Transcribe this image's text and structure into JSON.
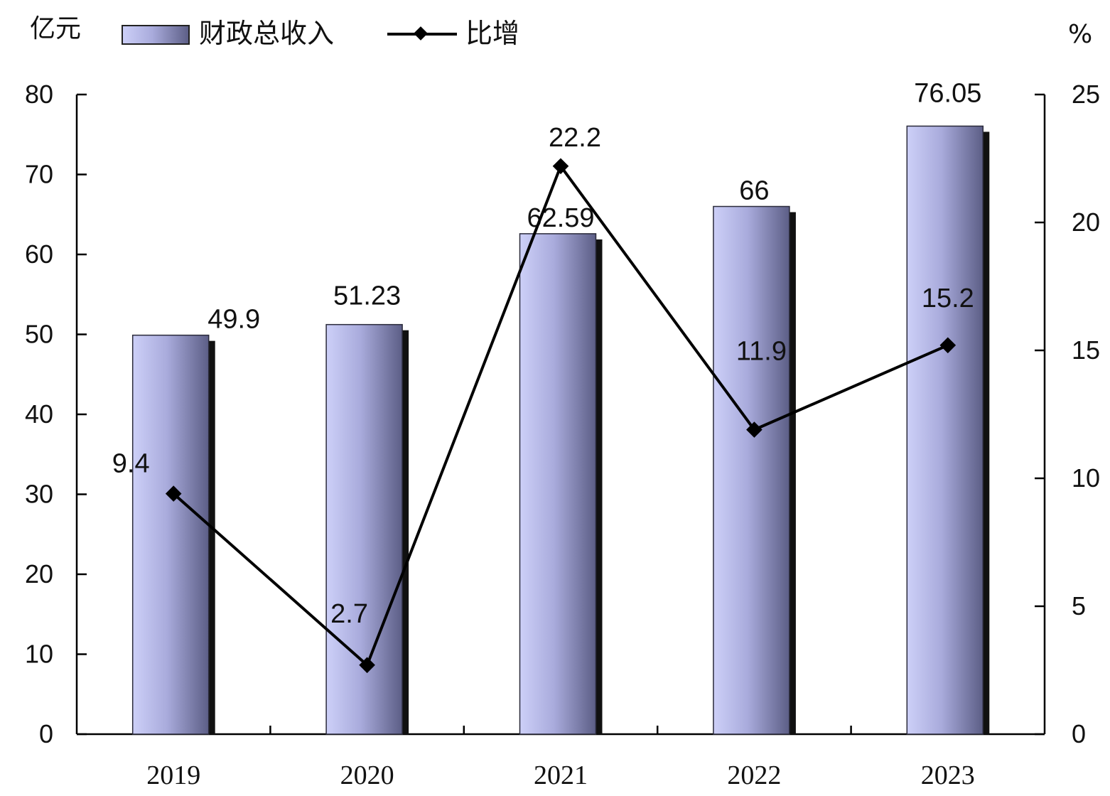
{
  "chart_data": {
    "type": "bar+line",
    "categories": [
      "2019",
      "2020",
      "2021",
      "2022",
      "2023"
    ],
    "series": [
      {
        "name": "财政总收入",
        "type": "bar",
        "axis": "left",
        "values": [
          49.9,
          51.23,
          62.59,
          66,
          76.05
        ],
        "labels": [
          "49.9",
          "51.23",
          "62.59",
          "66",
          "76.05"
        ]
      },
      {
        "name": "比增",
        "type": "line",
        "axis": "right",
        "values": [
          9.4,
          2.7,
          22.2,
          11.9,
          15.2
        ],
        "labels": [
          "9.4",
          "2.7",
          "22.2",
          "11.9",
          "15.2"
        ]
      }
    ],
    "y_left": {
      "unit": "亿元",
      "range": [
        0,
        80
      ],
      "ticks": [
        "0",
        "10",
        "20",
        "30",
        "40",
        "50",
        "60",
        "70",
        "80"
      ]
    },
    "y_right": {
      "unit": "%",
      "range": [
        0,
        25
      ],
      "ticks": [
        "0",
        "5",
        "10",
        "15",
        "20",
        "25"
      ]
    },
    "legend": {
      "placement": "top-left"
    },
    "grid": false,
    "colors": {
      "bar_light": "#c9cbf4",
      "bar_dark": "#5c5e86",
      "bar_shadow": "#111111",
      "line": "#000000"
    }
  }
}
